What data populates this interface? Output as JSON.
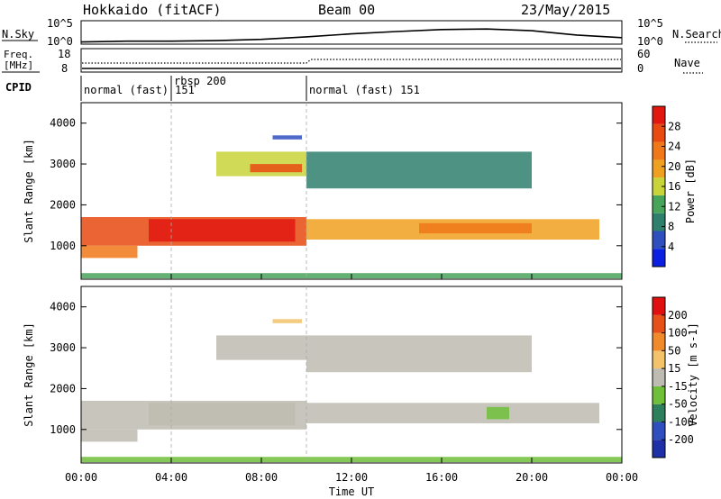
{
  "header": {
    "title": "Hokkaido (fitACF)",
    "beam": "Beam 00",
    "date": "23/May/2015"
  },
  "top_panel": {
    "left_label": "N.Sky",
    "left_ticks": [
      "10^5",
      "10^0"
    ],
    "right_label": "N.Search",
    "right_ticks": [
      "10^5",
      "10^0"
    ]
  },
  "freq_panel": {
    "left_label_line1": "Freq.",
    "left_label_line2": "[MHz]",
    "left_ticks": [
      "18",
      "8"
    ],
    "right_label": "Nave",
    "right_ticks": [
      "60",
      "0"
    ]
  },
  "cpid_panel": {
    "label": "CPID",
    "segments": [
      {
        "text": "normal (fast) 151",
        "start_hour": 0,
        "end_hour": 4
      },
      {
        "text": "rbsp 200",
        "start_hour": 4,
        "end_hour": 10
      },
      {
        "text": "normal (fast) 151",
        "start_hour": 10,
        "end_hour": 24
      }
    ]
  },
  "power_colorbar": {
    "label": "Power [dB]",
    "ticks": [
      "28",
      "24",
      "20",
      "16",
      "12",
      "8",
      "4"
    ],
    "colors": [
      "#0a1fe0",
      "#2f4fbf",
      "#2e7f6c",
      "#48a45a",
      "#c8d43a",
      "#f0a020",
      "#f07818",
      "#e84a10",
      "#e01810"
    ]
  },
  "velocity_colorbar": {
    "label": "Velocity [m s-1]",
    "ticks": [
      "200",
      "100",
      "50",
      "15",
      "-15",
      "-50",
      "-100",
      "-200"
    ],
    "colors": [
      "#1f2fa8",
      "#2f4fbf",
      "#2e7f5c",
      "#6fbf3a",
      "#bebbb2",
      "#f3c26a",
      "#f08a2a",
      "#e8501a",
      "#e01010"
    ]
  },
  "x_axis": {
    "label": "Time UT",
    "ticks": [
      "00:00",
      "04:00",
      "08:00",
      "12:00",
      "16:00",
      "20:00",
      "00:00"
    ]
  },
  "chart_data": [
    {
      "type": "line",
      "title": "",
      "x_unit": "hours UT",
      "yscale": "log",
      "ylim": [
        1,
        100000
      ],
      "series": [
        {
          "name": "N.Sky",
          "x": [
            0,
            2,
            4,
            6,
            8,
            10,
            12,
            14,
            16,
            18,
            20,
            22,
            24
          ],
          "y": [
            2,
            3,
            3,
            4,
            8,
            30,
            150,
            500,
            1500,
            2000,
            800,
            80,
            20
          ]
        }
      ]
    },
    {
      "type": "line",
      "title": "",
      "x_unit": "hours UT",
      "ylim": [
        8,
        18
      ],
      "series": [
        {
          "name": "Freq",
          "x": [
            0,
            24
          ],
          "y": [
            10.2,
            10.2
          ]
        }
      ]
    },
    {
      "type": "heatmap",
      "title": "",
      "ylabel": "Slant Range [km]",
      "xlabel": "Time UT",
      "xlim": [
        0,
        24
      ],
      "ylim": [
        180,
        4500
      ],
      "yticks": [
        1000,
        2000,
        3000,
        4000
      ],
      "xticks": [
        "00:00",
        "04:00",
        "08:00",
        "12:00",
        "16:00",
        "20:00",
        "00:00"
      ],
      "colorbar": "Power [dB]",
      "regions": [
        {
          "t0": 0.0,
          "t1": 10.0,
          "r0": 1000,
          "r1": 1700,
          "level": 7
        },
        {
          "t0": 3.0,
          "t1": 9.5,
          "r0": 1100,
          "r1": 1650,
          "level": 8
        },
        {
          "t0": 0.0,
          "t1": 2.5,
          "r0": 700,
          "r1": 1000,
          "level": 6
        },
        {
          "t0": 10.0,
          "t1": 23.0,
          "r0": 1150,
          "r1": 1650,
          "level": 5
        },
        {
          "t0": 15.0,
          "t1": 20.0,
          "r0": 1300,
          "r1": 1550,
          "level": 6
        },
        {
          "t0": 6.0,
          "t1": 10.0,
          "r0": 2700,
          "r1": 3300,
          "level": 4
        },
        {
          "t0": 7.5,
          "t1": 9.8,
          "r0": 2800,
          "r1": 3000,
          "level": 7
        },
        {
          "t0": 10.0,
          "t1": 20.0,
          "r0": 2400,
          "r1": 3300,
          "level": 2
        },
        {
          "t0": 8.5,
          "t1": 9.8,
          "r0": 3600,
          "r1": 3700,
          "level": 1
        },
        {
          "t0": 0.0,
          "t1": 24.0,
          "r0": 200,
          "r1": 330,
          "level": 3
        }
      ]
    },
    {
      "type": "heatmap",
      "title": "",
      "ylabel": "Slant Range [km]",
      "xlabel": "Time UT",
      "xlim": [
        0,
        24
      ],
      "ylim": [
        180,
        4500
      ],
      "yticks": [
        1000,
        2000,
        3000,
        4000
      ],
      "xticks": [
        "00:00",
        "04:00",
        "08:00",
        "12:00",
        "16:00",
        "20:00",
        "00:00"
      ],
      "colorbar": "Velocity [m s-1]",
      "regions": [
        {
          "t0": 0.0,
          "t1": 10.0,
          "r0": 1000,
          "r1": 1700,
          "level": 4
        },
        {
          "t0": 3.0,
          "t1": 9.5,
          "r0": 1100,
          "r1": 1650,
          "level": 4
        },
        {
          "t0": 0.0,
          "t1": 2.5,
          "r0": 700,
          "r1": 1000,
          "level": 4
        },
        {
          "t0": 10.0,
          "t1": 23.0,
          "r0": 1150,
          "r1": 1650,
          "level": 4
        },
        {
          "t0": 18.0,
          "t1": 19.0,
          "r0": 1250,
          "r1": 1550,
          "level": 3
        },
        {
          "t0": 6.0,
          "t1": 10.0,
          "r0": 2700,
          "r1": 3300,
          "level": 4
        },
        {
          "t0": 10.0,
          "t1": 20.0,
          "r0": 2400,
          "r1": 3300,
          "level": 4
        },
        {
          "t0": 8.5,
          "t1": 9.8,
          "r0": 3600,
          "r1": 3700,
          "level": 5
        },
        {
          "t0": 0.0,
          "t1": 24.0,
          "r0": 200,
          "r1": 330,
          "level": 3
        }
      ]
    }
  ]
}
